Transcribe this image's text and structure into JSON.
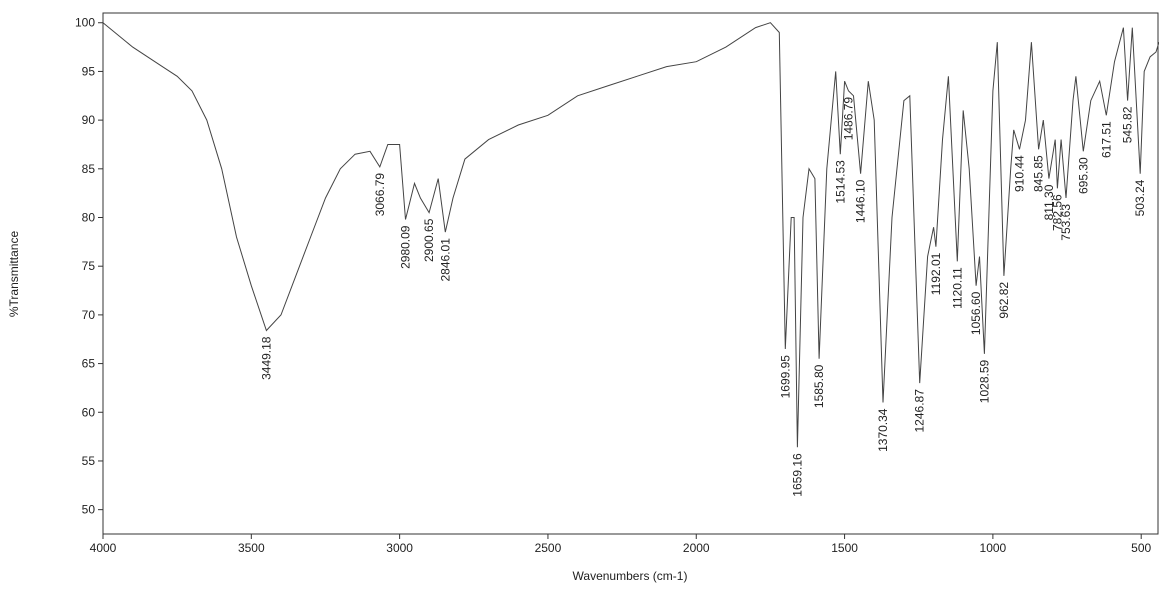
{
  "chart_data": {
    "type": "line",
    "x_label": "Wavenumbers (cm-1)",
    "y_label": "%Transmittance",
    "x": [
      4000,
      3900,
      3800,
      3750,
      3700,
      3650,
      3600,
      3550,
      3500,
      3449.18,
      3400,
      3350,
      3300,
      3250,
      3200,
      3150,
      3100,
      3066.79,
      3040,
      3000,
      2980.09,
      2950,
      2930,
      2900.65,
      2870,
      2846.01,
      2820,
      2780,
      2700,
      2600,
      2500,
      2400,
      2300,
      2200,
      2100,
      2000,
      1900,
      1800,
      1750,
      1720,
      1699.95,
      1680,
      1670,
      1659.16,
      1640,
      1620,
      1600,
      1585.8,
      1560,
      1530,
      1514.53,
      1500,
      1486.79,
      1470,
      1446.1,
      1420,
      1400,
      1370.34,
      1340,
      1300,
      1280,
      1246.87,
      1220,
      1200,
      1192.01,
      1170,
      1150,
      1120.11,
      1100,
      1080,
      1056.6,
      1045,
      1028.59,
      1000,
      985,
      962.82,
      940,
      930,
      910.44,
      890,
      870,
      845.85,
      830,
      811.3,
      790,
      782.56,
      770,
      753.63,
      730,
      720,
      695.3,
      670,
      640,
      617.51,
      590,
      560,
      545.82,
      530,
      503.24,
      490,
      470,
      450,
      440
    ],
    "values": [
      100,
      97.5,
      95.5,
      94.5,
      93,
      90,
      85,
      78,
      73,
      68.4,
      70,
      74,
      78,
      82,
      85,
      86.5,
      86.8,
      85.2,
      87.5,
      87.5,
      79.8,
      83.5,
      82,
      80.5,
      84,
      78.5,
      82,
      86,
      88,
      89.5,
      90.5,
      92.5,
      93.5,
      94.5,
      95.5,
      96,
      97.5,
      99.5,
      100,
      99,
      66.5,
      80,
      80,
      56.4,
      80,
      85,
      84,
      65.5,
      85,
      95,
      86.5,
      94,
      93,
      92.5,
      84.5,
      94,
      90,
      61,
      80,
      92,
      92.5,
      63,
      76,
      79,
      77,
      88,
      94.5,
      75.5,
      91,
      85,
      73,
      76,
      66,
      93,
      98,
      74,
      85,
      89,
      87,
      90,
      98,
      87,
      90,
      84,
      88,
      83,
      88,
      82,
      92,
      94.5,
      86.8,
      92,
      94,
      90.5,
      96,
      99.5,
      92,
      99.5,
      84.5,
      95,
      96.5,
      97,
      98
    ],
    "color": "#444444",
    "peaks": [
      3449.18,
      3066.79,
      2980.09,
      2900.65,
      2846.01,
      1699.95,
      1659.16,
      1585.8,
      1514.53,
      1486.79,
      1446.1,
      1370.34,
      1246.87,
      1192.01,
      1120.11,
      1056.6,
      1028.59,
      962.82,
      910.44,
      845.85,
      811.3,
      782.56,
      753.63,
      695.3,
      617.51,
      545.82,
      503.24
    ],
    "peak_labels": [
      "3449.18",
      "3066.79",
      "2980.09",
      "2900.65",
      "2846.01",
      "1699.95",
      "1659.16",
      "1585.80",
      "1514.53",
      "1486.79",
      "1446.10",
      "1370.34",
      "1246.87",
      "1192.01",
      "1120.11",
      "1056.60",
      "1028.59",
      "962.82",
      "910.44",
      "845.85",
      "811.30",
      "782.56",
      "753.63",
      "695.30",
      "617.51",
      "545.82",
      "503.24"
    ],
    "xlim": [
      4000,
      440
    ],
    "ylim": [
      47.5,
      101
    ],
    "xticks": [
      4000,
      3500,
      3000,
      2500,
      2000,
      1500,
      1000,
      500
    ],
    "yticks": [
      50,
      55,
      60,
      65,
      70,
      75,
      80,
      85,
      90,
      95,
      100
    ]
  }
}
